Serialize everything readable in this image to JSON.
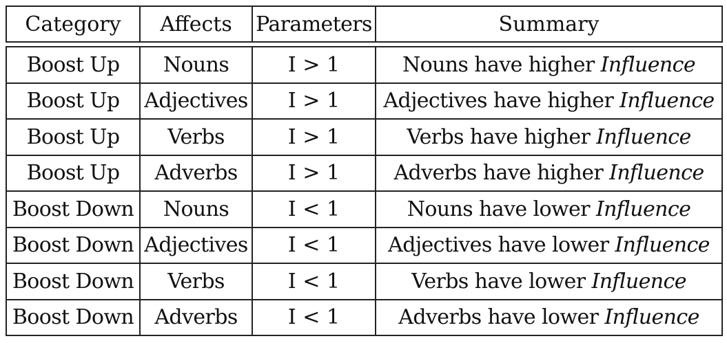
{
  "table": {
    "headers": [
      "Category",
      "Affects",
      "Parameters",
      "Summary"
    ],
    "rows": [
      {
        "category": "Boost Up",
        "affects": "Nouns",
        "parameters": "I > 1",
        "summary_text": "Nouns have higher",
        "summary_emph": "Influence"
      },
      {
        "category": "Boost Up",
        "affects": "Adjectives",
        "parameters": "I > 1",
        "summary_text": "Adjectives have higher",
        "summary_emph": "Influence"
      },
      {
        "category": "Boost Up",
        "affects": "Verbs",
        "parameters": "I > 1",
        "summary_text": "Verbs have higher",
        "summary_emph": "Influence"
      },
      {
        "category": "Boost Up",
        "affects": "Adverbs",
        "parameters": "I > 1",
        "summary_text": "Adverbs have higher",
        "summary_emph": "Influence"
      },
      {
        "category": "Boost Down",
        "affects": "Nouns",
        "parameters": "I < 1",
        "summary_text": "Nouns have lower",
        "summary_emph": "Influence"
      },
      {
        "category": "Boost Down",
        "affects": "Adjectives",
        "parameters": "I < 1",
        "summary_text": "Adjectives have lower",
        "summary_emph": "Influence"
      },
      {
        "category": "Boost Down",
        "affects": "Verbs",
        "parameters": "I < 1",
        "summary_text": "Verbs have lower",
        "summary_emph": "Influence"
      },
      {
        "category": "Boost Down",
        "affects": "Adverbs",
        "parameters": "I < 1",
        "summary_text": "Adverbs have lower",
        "summary_emph": "Influence"
      }
    ]
  }
}
